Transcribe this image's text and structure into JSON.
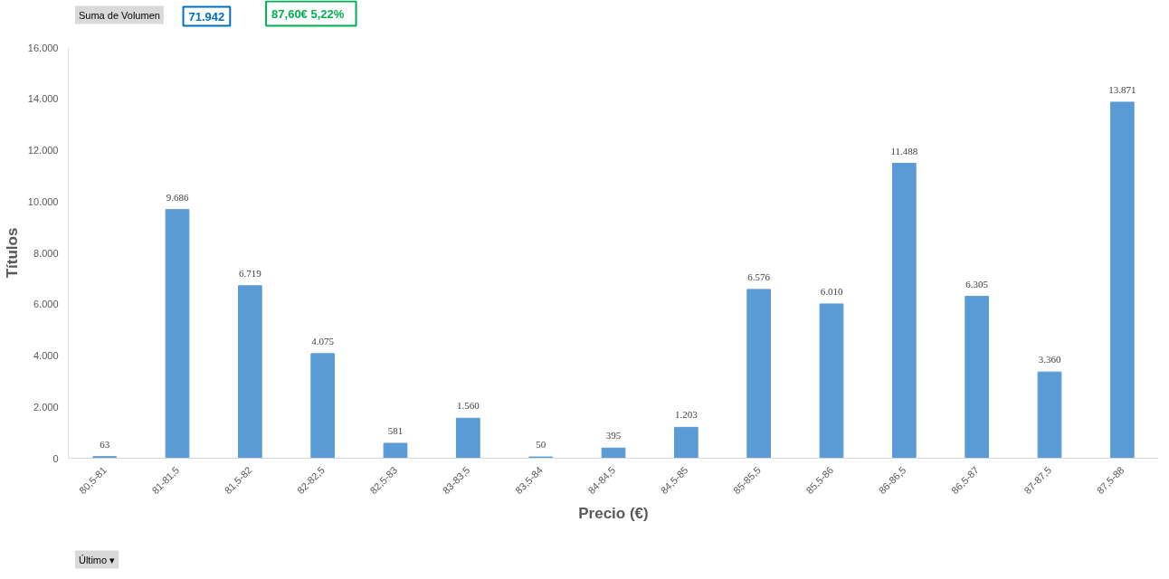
{
  "chart_data": {
    "type": "bar",
    "xlabel": "Precio (€)",
    "ylabel": "Títulos",
    "annotations": [
      "Suma de Volumen",
      "71.942",
      "87,60€   5,22%",
      "Último ▾"
    ],
    "categories": [
      "80,5-81",
      "81-81,5",
      "81,5-82",
      "82-82,5",
      "82,5-83",
      "83-83,5",
      "83,5-84",
      "84-84,5",
      "84,5-85",
      "85-85,5",
      "85,5-86",
      "86-86,5",
      "86,5-87",
      "87-87,5",
      "87,5-88"
    ],
    "values": [
      63,
      9686,
      6719,
      4075,
      581,
      1560,
      50,
      395,
      1203,
      6576,
      6010,
      11488,
      6305,
      3360,
      13871
    ],
    "value_labels": [
      "63",
      "9.686",
      "6.719",
      "4.075",
      "581",
      "1.560",
      "50",
      "395",
      "1.203",
      "6.576",
      "6.010",
      "11.488",
      "6.305",
      "3.360",
      "13.871"
    ],
    "color": "#5b9bd5",
    "ylim": [
      0,
      16000
    ],
    "yticks": [
      {
        "value": 0,
        "label": "0"
      },
      {
        "value": 2000,
        "label": "2.000"
      },
      {
        "value": 4000,
        "label": "4.000"
      },
      {
        "value": 6000,
        "label": "6.000"
      },
      {
        "value": 8000,
        "label": "8.000"
      },
      {
        "value": 10000,
        "label": "10.000"
      },
      {
        "value": 12000,
        "label": "12.000"
      },
      {
        "value": 14000,
        "label": "14.000"
      },
      {
        "value": 16000,
        "label": "16.000"
      }
    ],
    "grid": false
  }
}
